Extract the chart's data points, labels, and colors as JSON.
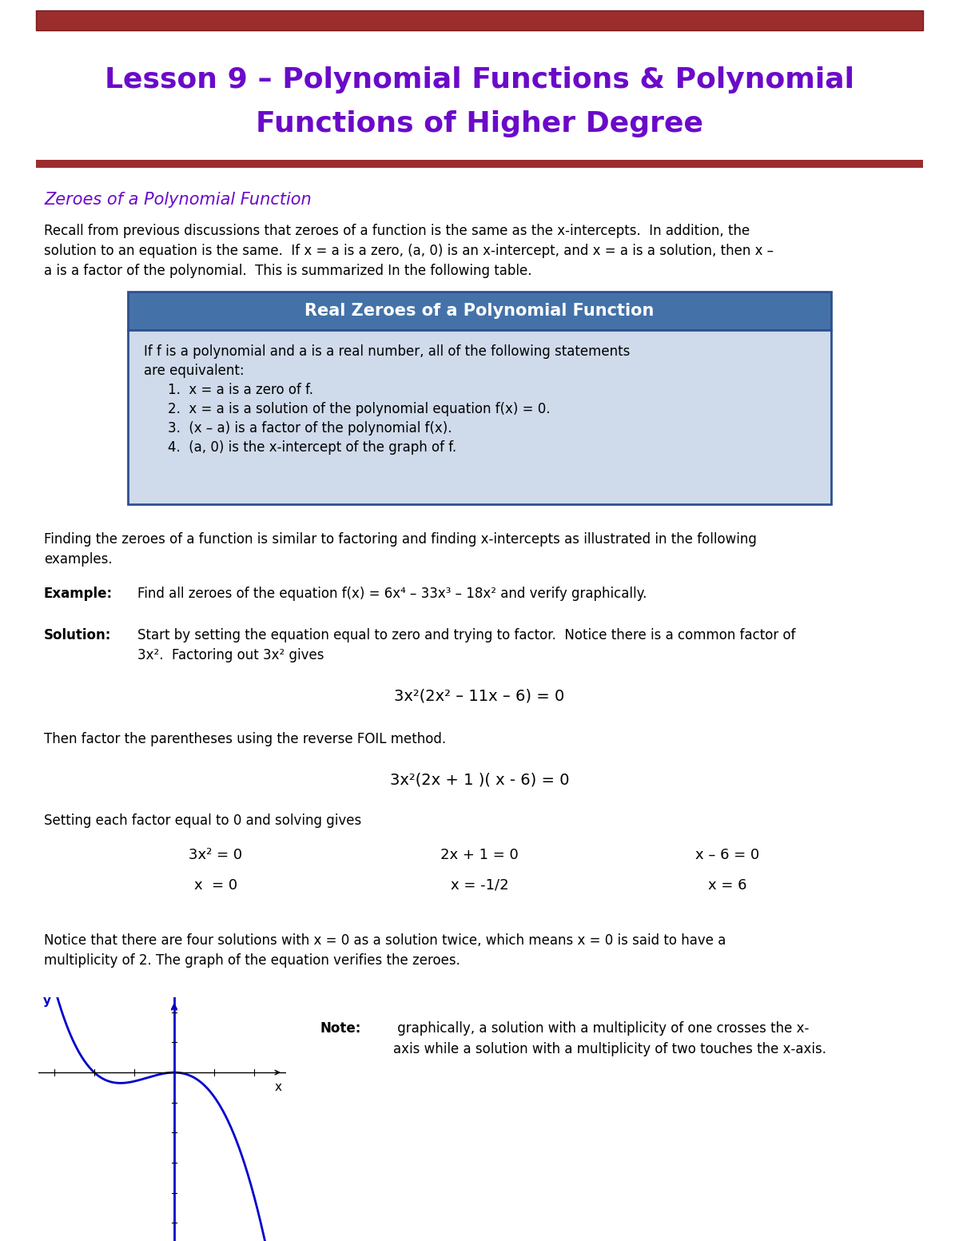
{
  "bg_color": "#ffffff",
  "top_bar_color": "#9B2D2D",
  "divider_color": "#9B2D2D",
  "title_line1": "Lesson 9 – Polynomial Functions & Polynomial",
  "title_line2": "Functions of Higher Degree",
  "title_color": "#6B0AC9",
  "section_title": "Zeroes of a Polynomial Function",
  "section_title_color": "#6B0AC9",
  "body_color": "#000000",
  "table_header_bg": "#4472A8",
  "table_header_text_color": "#ffffff",
  "table_body_bg": "#CFDAEB",
  "table_border_color": "#2F4F8F",
  "graph_curve_color": "#0000CC",
  "graph_axis_color": "#0000CC"
}
